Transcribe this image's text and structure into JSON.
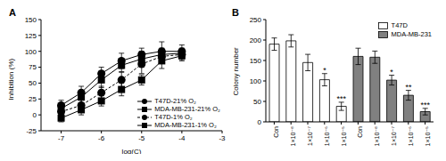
{
  "chart_data": [
    {
      "type": "scatter",
      "title": "A",
      "x_label": "log(C)",
      "y_label": "Inhibition (%)",
      "x": [
        -7,
        -6.5,
        -6,
        -5.5,
        -5,
        -4.5,
        -4
      ],
      "xlim": [
        -7.5,
        -3
      ],
      "xticks": [
        -7,
        -6,
        -5,
        -4,
        -3
      ],
      "ylim": [
        -25,
        150
      ],
      "yticks": [
        -25,
        0,
        25,
        50,
        75,
        100,
        125,
        150
      ],
      "legend": "lower right",
      "series": [
        {
          "name": "T47D-21% O₂",
          "color": "#000000",
          "marker": "circle",
          "line_style": "solid",
          "values": [
            15,
            35,
            65,
            85,
            95,
            100,
            100
          ],
          "errors": [
            8,
            10,
            10,
            12,
            10,
            15,
            10
          ]
        },
        {
          "name": "MDA-MB-231-21% O₂",
          "color": "#000000",
          "marker": "square",
          "line_style": "solid",
          "values": [
            10,
            28,
            55,
            78,
            88,
            95,
            97
          ],
          "errors": [
            8,
            10,
            12,
            10,
            12,
            10,
            8
          ]
        },
        {
          "name": "T47D-1% O₂",
          "color": "#000000",
          "marker": "circle",
          "line_style": "dashed",
          "values": [
            5,
            15,
            35,
            55,
            80,
            92,
            95
          ],
          "errors": [
            6,
            8,
            10,
            12,
            15,
            10,
            8
          ]
        },
        {
          "name": "MDA-MB-231-1% O₂",
          "color": "#000000",
          "marker": "square",
          "line_style": "solid",
          "values": [
            -5,
            8,
            22,
            40,
            55,
            85,
            93
          ],
          "errors": [
            6,
            8,
            8,
            10,
            8,
            12,
            8
          ]
        }
      ]
    },
    {
      "type": "bar",
      "title": "B",
      "y_label": "Colony number",
      "categories": [
        "Con",
        "1×10⁻⁸",
        "1×10⁻⁷",
        "1×10⁻⁶",
        "1×10⁻⁵",
        "Con",
        "1×10⁻⁸",
        "1×10⁻⁷",
        "1×10⁻⁶",
        "1×10⁻⁵"
      ],
      "ylim": [
        0,
        250
      ],
      "yticks": [
        0,
        50,
        100,
        150,
        200,
        250
      ],
      "legend": "upper right",
      "series": [
        {
          "name": "T47D",
          "color": "#ffffff",
          "values": [
            190,
            198,
            145,
            103,
            38,
            null,
            null,
            null,
            null,
            null
          ],
          "errors": [
            15,
            15,
            20,
            15,
            10,
            null,
            null,
            null,
            null,
            null
          ],
          "significance": [
            null,
            null,
            null,
            "*",
            "***",
            null,
            null,
            null,
            null,
            null
          ]
        },
        {
          "name": "MDA-MB-231",
          "color": "#808080",
          "values": [
            null,
            null,
            null,
            null,
            null,
            160,
            158,
            102,
            65,
            25
          ],
          "errors": [
            null,
            null,
            null,
            null,
            null,
            20,
            15,
            12,
            12,
            8
          ],
          "significance": [
            null,
            null,
            null,
            null,
            null,
            null,
            null,
            "*",
            "**",
            "***"
          ]
        }
      ]
    }
  ]
}
